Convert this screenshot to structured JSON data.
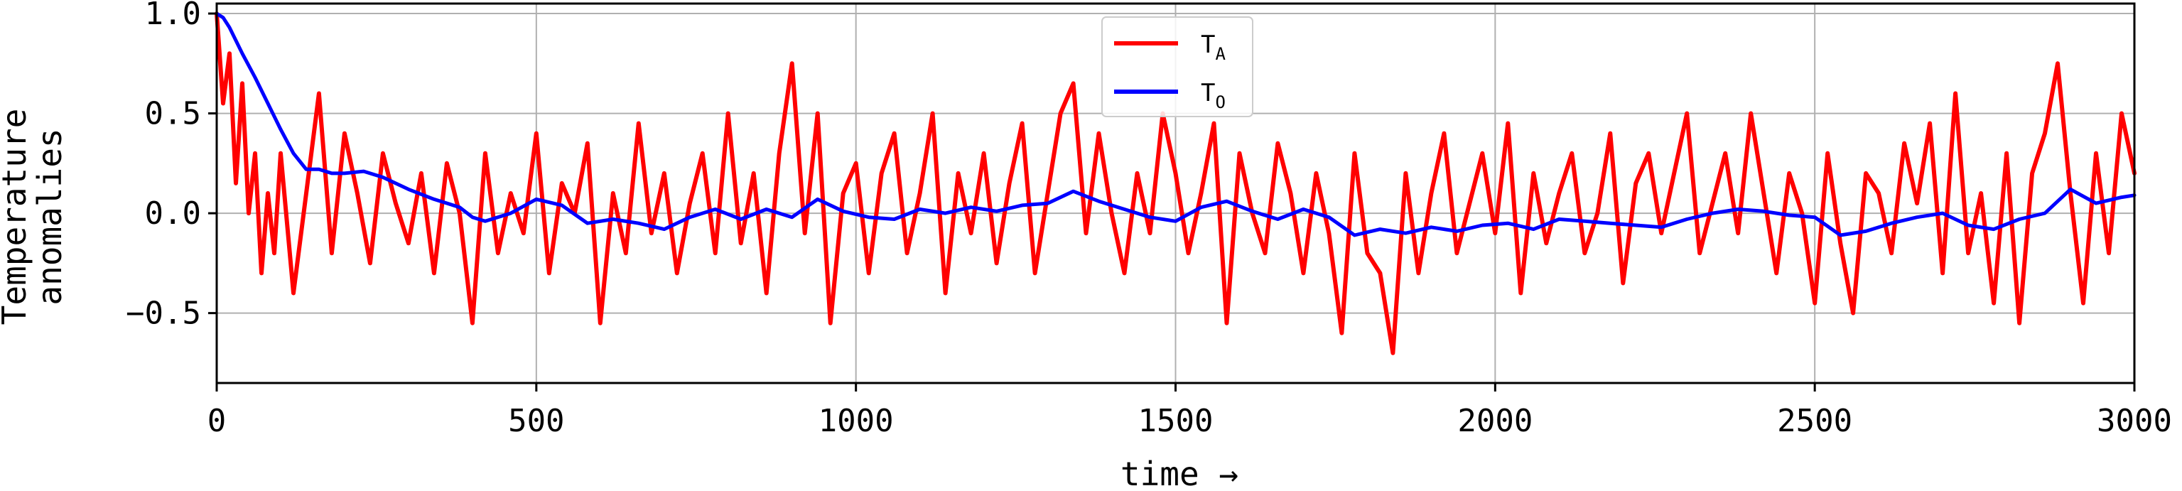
{
  "chart_data": {
    "type": "line",
    "xlabel": "time →",
    "ylabel_lines": [
      "Temperature",
      "anomalies"
    ],
    "xlim": [
      0,
      3000
    ],
    "ylim": [
      -0.85,
      1.05
    ],
    "xticks": [
      0,
      500,
      1000,
      1500,
      2000,
      2500,
      3000
    ],
    "xtick_labels": [
      "0",
      "500",
      "1000",
      "1500",
      "2000",
      "2500",
      "3000"
    ],
    "yticks": [
      -0.5,
      0.0,
      0.5,
      1.0
    ],
    "ytick_labels": [
      "−0.5",
      "0.0",
      "0.5",
      "1.0"
    ],
    "grid": true,
    "legend_position": "top-center",
    "series": [
      {
        "name": "T",
        "name_sub": "A",
        "color": "#ff0000",
        "x": [
          0,
          10,
          20,
          30,
          40,
          50,
          60,
          70,
          80,
          90,
          100,
          120,
          140,
          160,
          180,
          200,
          220,
          240,
          260,
          280,
          300,
          320,
          340,
          360,
          380,
          400,
          420,
          440,
          460,
          480,
          500,
          520,
          540,
          560,
          580,
          600,
          620,
          640,
          660,
          680,
          700,
          720,
          740,
          760,
          780,
          800,
          820,
          840,
          860,
          880,
          900,
          920,
          940,
          960,
          980,
          1000,
          1020,
          1040,
          1060,
          1080,
          1100,
          1120,
          1140,
          1160,
          1180,
          1200,
          1220,
          1240,
          1260,
          1280,
          1300,
          1320,
          1340,
          1360,
          1380,
          1400,
          1420,
          1440,
          1460,
          1480,
          1500,
          1520,
          1540,
          1560,
          1580,
          1600,
          1620,
          1640,
          1660,
          1680,
          1700,
          1720,
          1740,
          1760,
          1780,
          1800,
          1820,
          1840,
          1860,
          1880,
          1900,
          1920,
          1940,
          1960,
          1980,
          2000,
          2020,
          2040,
          2060,
          2080,
          2100,
          2120,
          2140,
          2160,
          2180,
          2200,
          2220,
          2240,
          2260,
          2280,
          2300,
          2320,
          2340,
          2360,
          2380,
          2400,
          2420,
          2440,
          2460,
          2480,
          2500,
          2520,
          2540,
          2560,
          2580,
          2600,
          2620,
          2640,
          2660,
          2680,
          2700,
          2720,
          2740,
          2760,
          2780,
          2800,
          2820,
          2840,
          2860,
          2880,
          2900,
          2920,
          2940,
          2960,
          2980,
          3000
        ],
        "y": [
          1.0,
          0.55,
          0.8,
          0.15,
          0.65,
          0.0,
          0.3,
          -0.3,
          0.1,
          -0.2,
          0.3,
          -0.4,
          0.1,
          0.6,
          -0.2,
          0.4,
          0.1,
          -0.25,
          0.3,
          0.05,
          -0.15,
          0.2,
          -0.3,
          0.25,
          0.0,
          -0.55,
          0.3,
          -0.2,
          0.1,
          -0.1,
          0.4,
          -0.3,
          0.15,
          0.0,
          0.35,
          -0.55,
          0.1,
          -0.2,
          0.45,
          -0.1,
          0.2,
          -0.3,
          0.05,
          0.3,
          -0.2,
          0.5,
          -0.15,
          0.2,
          -0.4,
          0.3,
          0.75,
          -0.1,
          0.5,
          -0.55,
          0.1,
          0.25,
          -0.3,
          0.2,
          0.4,
          -0.2,
          0.1,
          0.5,
          -0.4,
          0.2,
          -0.1,
          0.3,
          -0.25,
          0.15,
          0.45,
          -0.3,
          0.1,
          0.5,
          0.65,
          -0.1,
          0.4,
          0.0,
          -0.3,
          0.2,
          -0.1,
          0.5,
          0.2,
          -0.2,
          0.1,
          0.45,
          -0.55,
          0.3,
          0.0,
          -0.2,
          0.35,
          0.1,
          -0.3,
          0.2,
          -0.1,
          -0.6,
          0.3,
          -0.2,
          -0.3,
          -0.7,
          0.2,
          -0.3,
          0.1,
          0.4,
          -0.2,
          0.05,
          0.3,
          -0.1,
          0.45,
          -0.4,
          0.2,
          -0.15,
          0.1,
          0.3,
          -0.2,
          0.0,
          0.4,
          -0.35,
          0.15,
          0.3,
          -0.1,
          0.2,
          0.5,
          -0.2,
          0.05,
          0.3,
          -0.1,
          0.5,
          0.1,
          -0.3,
          0.2,
          0.0,
          -0.45,
          0.3,
          -0.15,
          -0.5,
          0.2,
          0.1,
          -0.2,
          0.35,
          0.05,
          0.45,
          -0.3,
          0.6,
          -0.2,
          0.1,
          -0.45,
          0.3,
          -0.55,
          0.2,
          0.4,
          0.75,
          0.1,
          -0.45,
          0.3,
          -0.2,
          0.5,
          0.2
        ]
      },
      {
        "name": "T",
        "name_sub": "O",
        "color": "#0000ff",
        "x": [
          0,
          10,
          20,
          40,
          60,
          80,
          100,
          120,
          140,
          160,
          180,
          200,
          230,
          260,
          300,
          340,
          380,
          400,
          420,
          460,
          500,
          540,
          580,
          620,
          660,
          700,
          740,
          780,
          820,
          860,
          900,
          940,
          980,
          1020,
          1060,
          1100,
          1140,
          1180,
          1220,
          1260,
          1300,
          1340,
          1380,
          1420,
          1460,
          1500,
          1540,
          1580,
          1620,
          1660,
          1700,
          1740,
          1780,
          1820,
          1860,
          1900,
          1940,
          1980,
          2020,
          2060,
          2100,
          2140,
          2180,
          2220,
          2260,
          2300,
          2340,
          2380,
          2420,
          2460,
          2500,
          2540,
          2580,
          2620,
          2660,
          2700,
          2740,
          2780,
          2820,
          2860,
          2900,
          2940,
          2980,
          3000
        ],
        "y": [
          1.0,
          0.98,
          0.93,
          0.8,
          0.68,
          0.55,
          0.42,
          0.3,
          0.22,
          0.22,
          0.2,
          0.2,
          0.21,
          0.18,
          0.12,
          0.07,
          0.03,
          -0.02,
          -0.04,
          0.0,
          0.07,
          0.04,
          -0.05,
          -0.03,
          -0.05,
          -0.08,
          -0.02,
          0.02,
          -0.03,
          0.02,
          -0.02,
          0.07,
          0.01,
          -0.02,
          -0.03,
          0.02,
          0.0,
          0.03,
          0.01,
          0.04,
          0.05,
          0.11,
          0.06,
          0.02,
          -0.02,
          -0.04,
          0.03,
          0.06,
          0.01,
          -0.03,
          0.02,
          -0.02,
          -0.11,
          -0.08,
          -0.1,
          -0.07,
          -0.09,
          -0.06,
          -0.05,
          -0.08,
          -0.03,
          -0.04,
          -0.05,
          -0.06,
          -0.07,
          -0.03,
          0.0,
          0.02,
          0.01,
          -0.01,
          -0.02,
          -0.11,
          -0.09,
          -0.05,
          -0.02,
          0.0,
          -0.06,
          -0.08,
          -0.03,
          0.0,
          0.12,
          0.05,
          0.08,
          0.09
        ]
      }
    ]
  }
}
